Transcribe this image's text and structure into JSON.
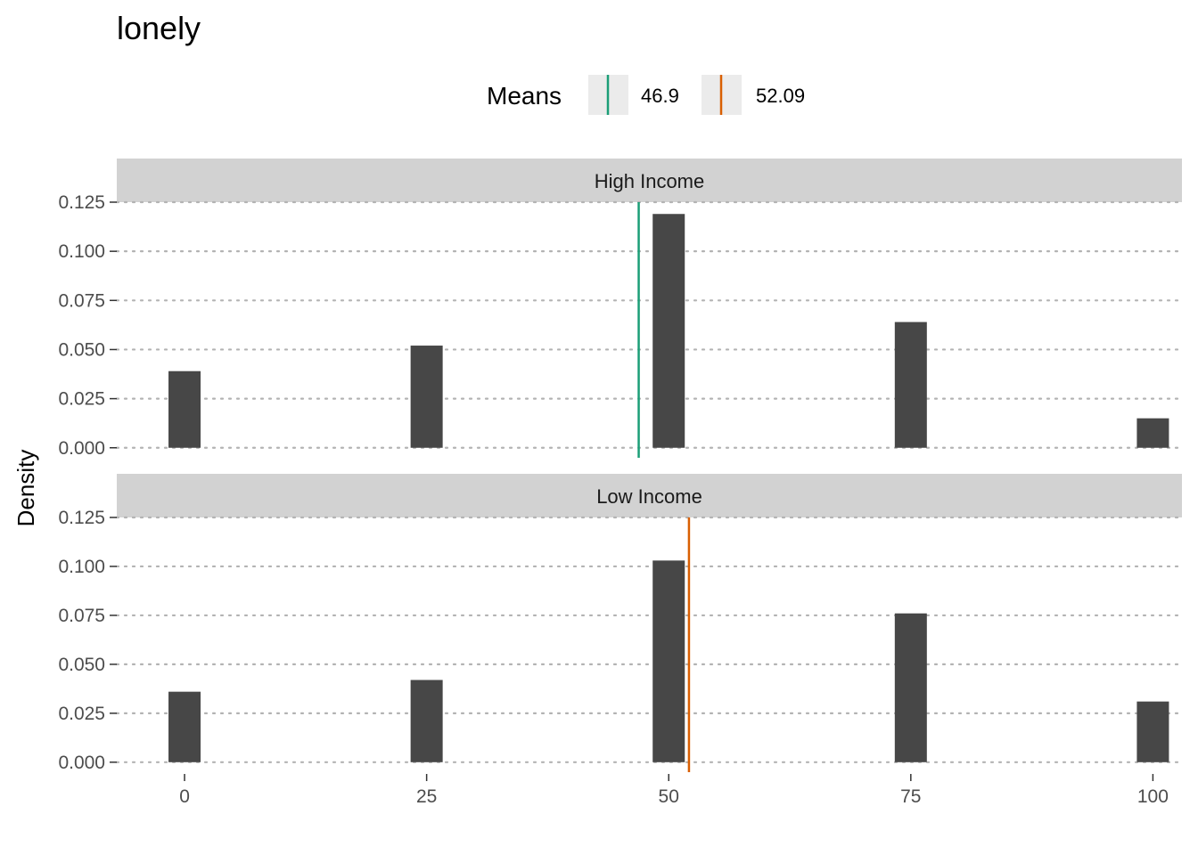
{
  "chart_data": {
    "type": "bar",
    "title": "lonely",
    "ylabel": "Density",
    "xlabel": "",
    "bar_color": "#474747",
    "strip_color": "#d2d2d2",
    "grid": "dotted horizontal",
    "legend": {
      "title": "Means",
      "position": "top",
      "entries": [
        {
          "label": "46.9",
          "value": 46.9,
          "color": "#1b9e77"
        },
        {
          "label": "52.09",
          "value": 52.09,
          "color": "#d95f02"
        }
      ]
    },
    "x_ticks": [
      {
        "value": 0,
        "label": "0"
      },
      {
        "value": 25,
        "label": "25"
      },
      {
        "value": 50,
        "label": "50"
      },
      {
        "value": 75,
        "label": "75"
      },
      {
        "value": 100,
        "label": "100"
      }
    ],
    "xlim": [
      -7,
      103
    ],
    "y_ticks": [
      {
        "value": 0,
        "label": "0.000"
      },
      {
        "value": 0.025,
        "label": "0.025"
      },
      {
        "value": 0.05,
        "label": "0.050"
      },
      {
        "value": 0.075,
        "label": "0.075"
      },
      {
        "value": 0.1,
        "label": "0.100"
      },
      {
        "value": 0.125,
        "label": "0.125"
      }
    ],
    "ylim": [
      -0.006,
      0.125
    ],
    "facets": [
      {
        "label": "High Income",
        "mean": 46.9,
        "mean_color": "#1b9e77",
        "bars": [
          {
            "x": 0,
            "y": 0.039
          },
          {
            "x": 25,
            "y": 0.052
          },
          {
            "x": 50,
            "y": 0.119
          },
          {
            "x": 75,
            "y": 0.064
          },
          {
            "x": 100,
            "y": 0.015
          }
        ]
      },
      {
        "label": "Low Income",
        "mean": 52.09,
        "mean_color": "#d95f02",
        "bars": [
          {
            "x": 0,
            "y": 0.036
          },
          {
            "x": 25,
            "y": 0.042
          },
          {
            "x": 50,
            "y": 0.103
          },
          {
            "x": 75,
            "y": 0.076
          },
          {
            "x": 100,
            "y": 0.031
          }
        ]
      }
    ]
  }
}
